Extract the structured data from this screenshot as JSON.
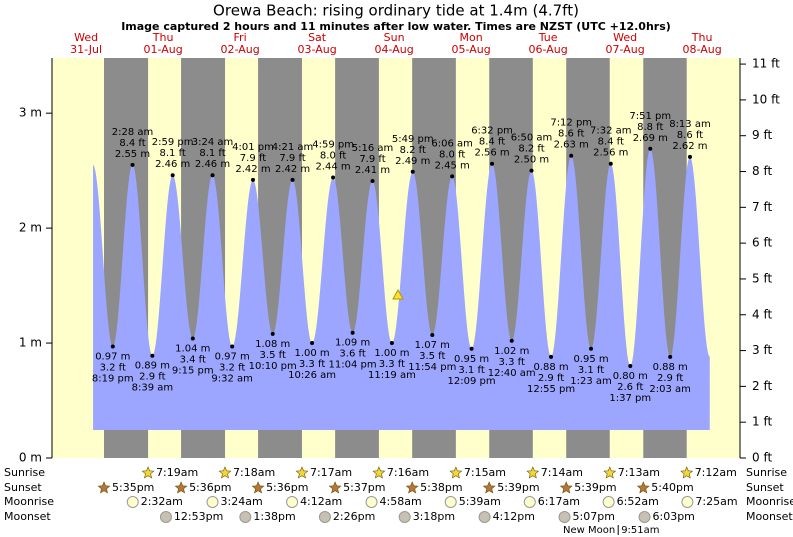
{
  "chart_data": {
    "type": "tide",
    "title": "Orewa Beach: rising  ordinary tide at 1.4m (4.7ft)",
    "subtitle": "Image captured 2 hours and 11 minutes after low water. Times are NZST (UTC +12.0hrs)",
    "ylim": [
      0,
      3.48
    ],
    "yticks": [
      {
        "value": 0,
        "label": "0 m"
      },
      {
        "value": 1,
        "label": "1 m"
      },
      {
        "value": 2,
        "label": "2 m"
      },
      {
        "value": 3,
        "label": "3 m"
      }
    ],
    "y2lim": [
      0,
      11.17
    ],
    "y2ticks": [
      {
        "value": 0,
        "label": "0 ft"
      },
      {
        "value": 1,
        "label": "1 ft"
      },
      {
        "value": 2,
        "label": "2 ft"
      },
      {
        "value": 3,
        "label": "3 ft"
      },
      {
        "value": 4,
        "label": "4 ft"
      },
      {
        "value": 5,
        "label": "5 ft"
      },
      {
        "value": 6,
        "label": "6 ft"
      },
      {
        "value": 7,
        "label": "7 ft"
      },
      {
        "value": 8,
        "label": "8 ft"
      },
      {
        "value": 9,
        "label": "9 ft"
      },
      {
        "value": 10,
        "label": "10 ft"
      },
      {
        "value": 11,
        "label": "11 ft"
      }
    ],
    "color": "#9ca6ff",
    "row_labels": {
      "sunrise": "Sunrise",
      "sunset": "Sunset",
      "moonrise": "Moonrise",
      "moonset": "Moonset"
    },
    "days": [
      {
        "day": "Wed",
        "date": "31-Jul",
        "sunset": "5:35pm",
        "tides": [
          {
            "time": "8:19 pm",
            "height": 0.97,
            "height_label": "0.97 m",
            "ft_label": "3.2 ft"
          }
        ]
      },
      {
        "day": "Thu",
        "date": "01-Aug",
        "sunrise": "7:19am",
        "sunset": "5:36pm",
        "moonrise": "2:32am",
        "moonset": "12:53pm",
        "tides": [
          {
            "time": "2:28 am",
            "height": 2.55,
            "height_label": "2.55 m",
            "ft_label": "8.4 ft"
          },
          {
            "time": "8:39 am",
            "height": 0.89,
            "height_label": "0.89 m",
            "ft_label": "2.9 ft"
          },
          {
            "time": "2:59 pm",
            "height": 2.46,
            "height_label": "2.46 m",
            "ft_label": "8.1 ft"
          },
          {
            "time": "9:15 pm",
            "height": 1.04,
            "height_label": "1.04 m",
            "ft_label": "3.4 ft"
          }
        ]
      },
      {
        "day": "Fri",
        "date": "02-Aug",
        "sunrise": "7:18am",
        "sunset": "5:36pm",
        "moonrise": "3:24am",
        "moonset": "1:38pm",
        "tides": [
          {
            "time": "3:24 am",
            "height": 2.46,
            "height_label": "2.46 m",
            "ft_label": "8.1 ft"
          },
          {
            "time": "9:32 am",
            "height": 0.97,
            "height_label": "0.97 m",
            "ft_label": "3.2 ft"
          },
          {
            "time": "4:01 pm",
            "height": 2.42,
            "height_label": "2.42 m",
            "ft_label": "7.9 ft"
          },
          {
            "time": "10:10 pm",
            "height": 1.08,
            "height_label": "1.08 m",
            "ft_label": "3.5 ft"
          }
        ]
      },
      {
        "day": "Sat",
        "date": "03-Aug",
        "sunrise": "7:17am",
        "sunset": "5:37pm",
        "moonrise": "4:12am",
        "moonset": "2:26pm",
        "tides": [
          {
            "time": "4:21 am",
            "height": 2.42,
            "height_label": "2.42 m",
            "ft_label": "7.9 ft"
          },
          {
            "time": "10:26 am",
            "height": 1.0,
            "height_label": "1.00 m",
            "ft_label": "3.3 ft"
          },
          {
            "time": "4:59 pm",
            "height": 2.44,
            "height_label": "2.44 m",
            "ft_label": "8.0 ft"
          },
          {
            "time": "11:04 pm",
            "height": 1.09,
            "height_label": "1.09 m",
            "ft_label": "3.6 ft"
          }
        ]
      },
      {
        "day": "Sun",
        "date": "04-Aug",
        "sunrise": "7:16am",
        "sunset": "5:38pm",
        "moonrise": "4:58am",
        "moonset": "3:18pm",
        "tides": [
          {
            "time": "5:16 am",
            "height": 2.41,
            "height_label": "2.41 m",
            "ft_label": "7.9 ft"
          },
          {
            "time": "11:19 am",
            "height": 1.0,
            "height_label": "1.00 m",
            "ft_label": "3.3 ft"
          },
          {
            "time": "5:49 pm",
            "height": 2.49,
            "height_label": "2.49 m",
            "ft_label": "8.2 ft"
          },
          {
            "time": "11:54 pm",
            "height": 1.07,
            "height_label": "1.07 m",
            "ft_label": "3.5 ft"
          }
        ]
      },
      {
        "day": "Mon",
        "date": "05-Aug",
        "sunrise": "7:15am",
        "sunset": "5:39pm",
        "moonrise": "5:39am",
        "moonset": "4:12pm",
        "tides": [
          {
            "time": "6:06 am",
            "height": 2.45,
            "height_label": "2.45 m",
            "ft_label": "8.0 ft"
          },
          {
            "time": "12:09 pm",
            "height": 0.95,
            "height_label": "0.95 m",
            "ft_label": "3.1 ft"
          },
          {
            "time": "6:32 pm",
            "height": 2.56,
            "height_label": "2.56 m",
            "ft_label": "8.4 ft"
          }
        ]
      },
      {
        "day": "Tue",
        "date": "06-Aug",
        "sunrise": "7:14am",
        "sunset": "5:39pm",
        "moonrise": "6:17am",
        "moonset": "5:07pm",
        "tides": [
          {
            "time": "12:40 am",
            "height": 1.02,
            "height_label": "1.02 m",
            "ft_label": "3.3 ft"
          },
          {
            "time": "6:50 am",
            "height": 2.5,
            "height_label": "2.50 m",
            "ft_label": "8.2 ft"
          },
          {
            "time": "12:55 pm",
            "height": 0.88,
            "height_label": "0.88 m",
            "ft_label": "2.9 ft"
          },
          {
            "time": "7:12 pm",
            "height": 2.63,
            "height_label": "2.63 m",
            "ft_label": "8.6 ft"
          }
        ]
      },
      {
        "day": "Wed",
        "date": "07-Aug",
        "sunrise": "7:13am",
        "sunset": "5:40pm",
        "moonrise": "6:52am",
        "moonset": "6:03pm",
        "new_moon": {
          "label": "New Moon",
          "time": "9:51am"
        },
        "tides": [
          {
            "time": "1:23 am",
            "height": 0.95,
            "height_label": "0.95 m",
            "ft_label": "3.1 ft"
          },
          {
            "time": "7:32 am",
            "height": 2.56,
            "height_label": "2.56 m",
            "ft_label": "8.4 ft"
          },
          {
            "time": "1:37 pm",
            "height": 0.8,
            "height_label": "0.80 m",
            "ft_label": "2.6 ft"
          },
          {
            "time": "7:51 pm",
            "height": 2.69,
            "height_label": "2.69 m",
            "ft_label": "8.8 ft"
          }
        ]
      },
      {
        "day": "Thu",
        "date": "08-Aug",
        "sunrise": "7:12am",
        "moonrise": "7:25am",
        "tides": [
          {
            "time": "2:03 am",
            "height": 0.88,
            "height_label": "0.88 m",
            "ft_label": "2.9 ft"
          },
          {
            "time": "8:13 am",
            "height": 2.62,
            "height_label": "2.62 m",
            "ft_label": "8.6 ft"
          }
        ]
      }
    ]
  }
}
